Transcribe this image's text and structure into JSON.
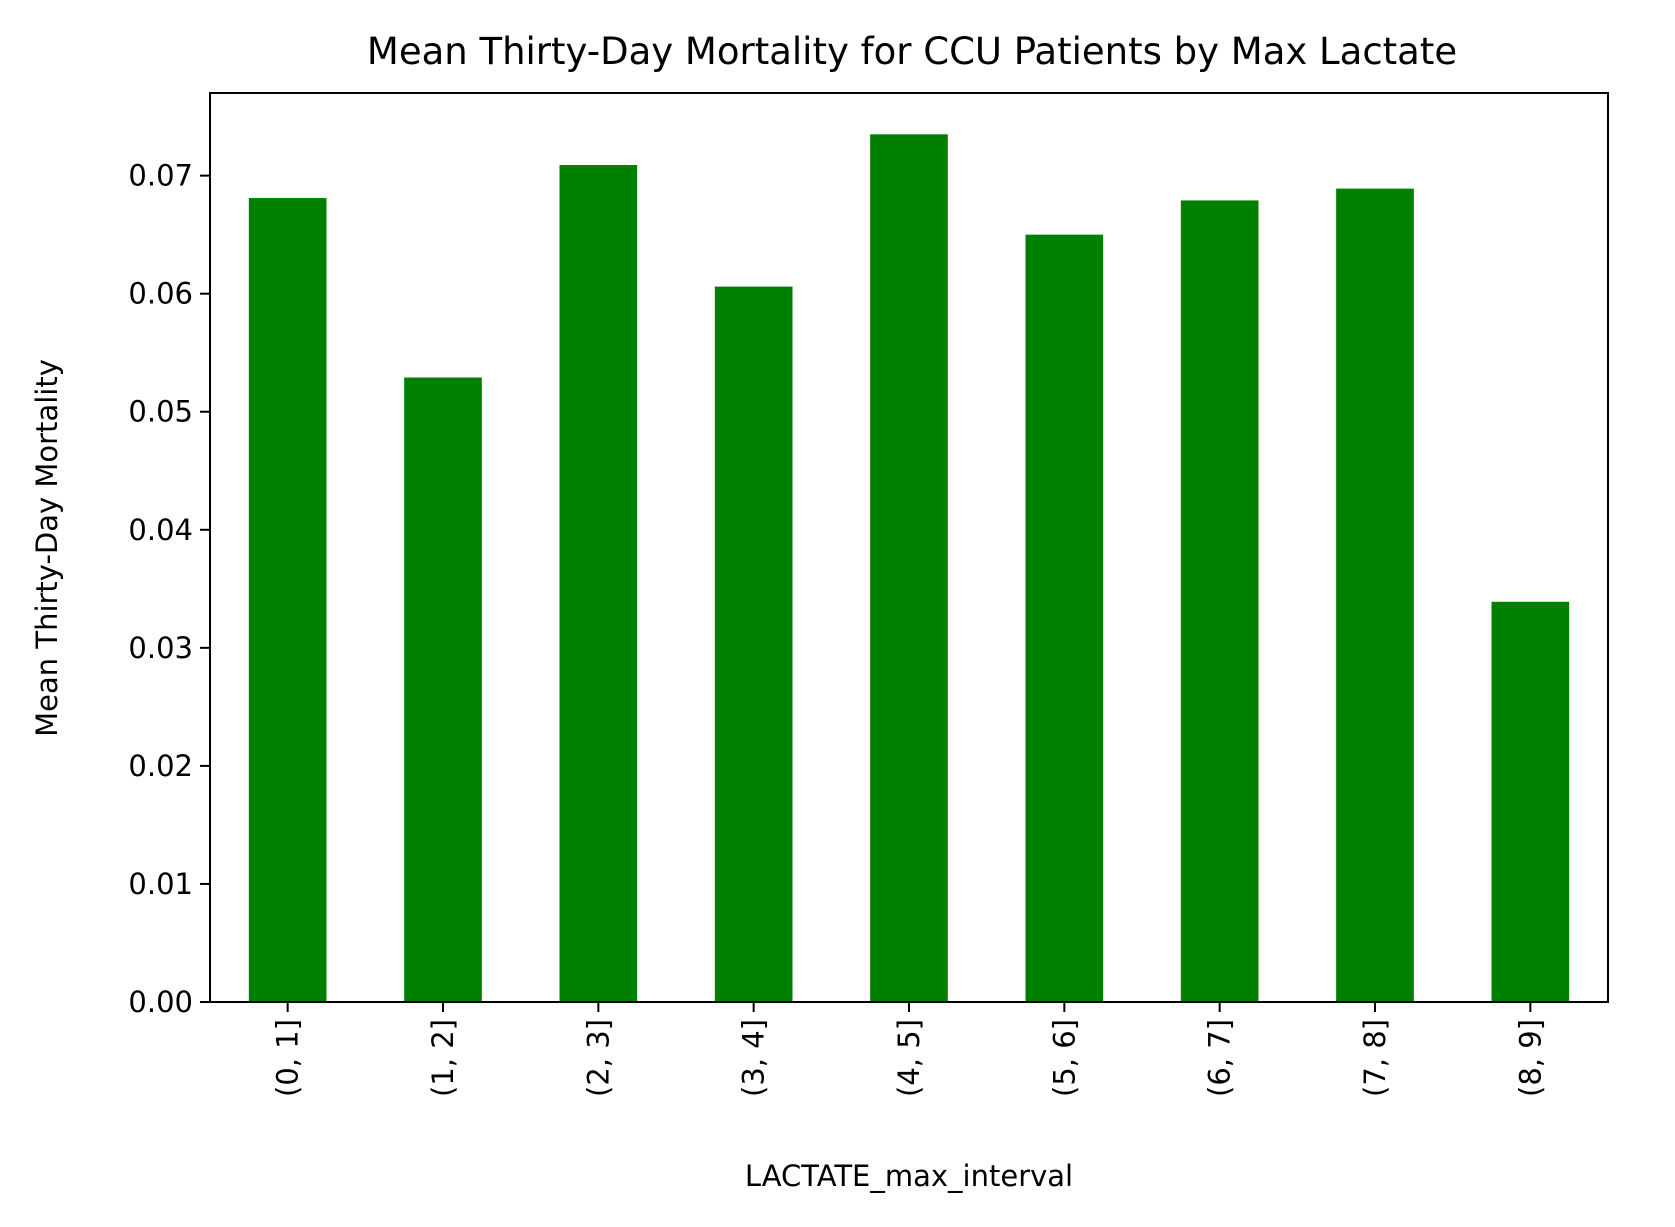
{
  "chart_data": {
    "type": "bar",
    "title": "Mean Thirty-Day Mortality for CCU Patients by Max Lactate",
    "xlabel": "LACTATE_max_interval",
    "ylabel": "Mean Thirty-Day Mortality",
    "categories": [
      "(0, 1]",
      "(1, 2]",
      "(2, 3]",
      "(3, 4]",
      "(4, 5]",
      "(5, 6]",
      "(6, 7]",
      "(7, 8]",
      "(8, 9]"
    ],
    "values": [
      0.0681,
      0.0529,
      0.0709,
      0.0606,
      0.0735,
      0.065,
      0.0679,
      0.0689,
      0.0339
    ],
    "ylim": [
      0,
      0.077
    ],
    "yticks": [
      "0.00",
      "0.01",
      "0.02",
      "0.03",
      "0.04",
      "0.05",
      "0.06",
      "0.07"
    ],
    "grid": false,
    "legend": "none",
    "bar_color": "#008000"
  }
}
